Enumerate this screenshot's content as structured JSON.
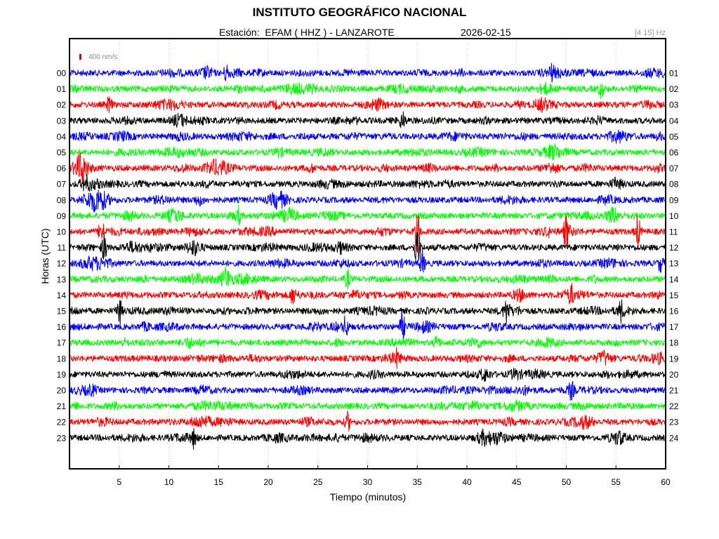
{
  "header": {
    "title": "INSTITUTO GEOGRÁFICO NACIONAL",
    "station_line": "Estación:  EFAM ( HHZ ) - LANZAROTE",
    "date": "2026-02-15",
    "band": "[4 15] Hz",
    "scale_label": "400 nm/s"
  },
  "chart_data": {
    "type": "line",
    "title": "INSTITUTO GEOGRÁFICO NACIONAL",
    "xlabel": "Tiempo (minutos)",
    "ylabel": "Horas (UTC)",
    "xlim": [
      0,
      60
    ],
    "x_ticks": [
      "5",
      "10",
      "15",
      "20",
      "25",
      "30",
      "35",
      "40",
      "45",
      "50",
      "55",
      "60"
    ],
    "y_ticks_left": [
      "00",
      "01",
      "02",
      "03",
      "04",
      "05",
      "06",
      "07",
      "08",
      "09",
      "10",
      "11",
      "12",
      "13",
      "14",
      "15",
      "16",
      "17",
      "18",
      "19",
      "20",
      "21",
      "22",
      "23"
    ],
    "y_ticks_right": [
      "01",
      "02",
      "03",
      "04",
      "05",
      "06",
      "07",
      "08",
      "09",
      "10",
      "11",
      "12",
      "13",
      "14",
      "15",
      "16",
      "17",
      "18",
      "19",
      "20",
      "21",
      "22",
      "23",
      "24"
    ],
    "grid": "vertical dotted",
    "trace_colors": [
      "#0000ff",
      "#00ff00",
      "#ff0000",
      "#000000"
    ],
    "events": [
      {
        "hour": 0,
        "minute": 15.8,
        "amp": 1.3
      },
      {
        "hour": 0,
        "minute": 48.5,
        "amp": 1.2
      },
      {
        "hour": 1,
        "minute": 53.5,
        "amp": 1.3
      },
      {
        "hour": 2,
        "minute": 4.0,
        "amp": 1.2
      },
      {
        "hour": 3,
        "minute": 33.5,
        "amp": 1.3
      },
      {
        "hour": 9,
        "minute": 17.0,
        "amp": 1.3
      },
      {
        "hour": 10,
        "minute": 3.2,
        "amp": 1.6
      },
      {
        "hour": 10,
        "minute": 35.0,
        "amp": 3.0
      },
      {
        "hour": 10,
        "minute": 50.0,
        "amp": 2.3
      },
      {
        "hour": 10,
        "minute": 57.2,
        "amp": 2.5
      },
      {
        "hour": 11,
        "minute": 3.5,
        "amp": 2.0
      },
      {
        "hour": 11,
        "minute": 35.0,
        "amp": 3.2
      },
      {
        "hour": 12,
        "minute": 35.5,
        "amp": 1.9
      },
      {
        "hour": 12,
        "minute": 59.5,
        "amp": 1.2
      },
      {
        "hour": 13,
        "minute": 28.0,
        "amp": 1.3
      },
      {
        "hour": 14,
        "minute": 22.5,
        "amp": 1.2
      },
      {
        "hour": 14,
        "minute": 50.5,
        "amp": 1.2
      },
      {
        "hour": 15,
        "minute": 5.0,
        "amp": 2.0
      },
      {
        "hour": 15,
        "minute": 44.0,
        "amp": 1.6
      },
      {
        "hour": 15,
        "minute": 55.5,
        "amp": 1.3
      },
      {
        "hour": 16,
        "minute": 27.8,
        "amp": 1.6
      },
      {
        "hour": 16,
        "minute": 33.5,
        "amp": 2.0
      },
      {
        "hour": 17,
        "minute": 37.0,
        "amp": 1.1
      },
      {
        "hour": 18,
        "minute": 33.0,
        "amp": 1.0
      },
      {
        "hour": 20,
        "minute": 50.5,
        "amp": 1.2
      },
      {
        "hour": 22,
        "minute": 28.0,
        "amp": 1.3
      },
      {
        "hour": 23,
        "minute": 12.5,
        "amp": 1.3
      }
    ]
  }
}
